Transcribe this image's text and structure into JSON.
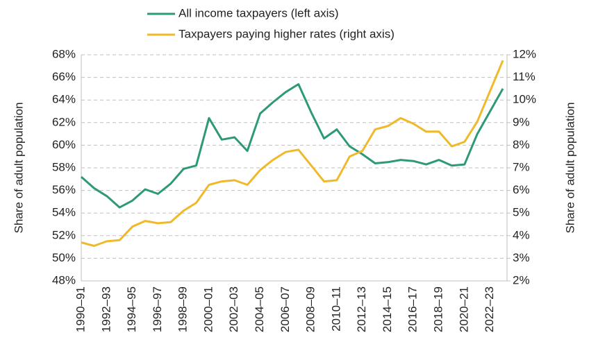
{
  "chart_data": {
    "type": "line",
    "y_label": "Share of adult population",
    "y2_label": "Share of adult population",
    "categories": [
      "1990–91",
      null,
      "1992–93",
      null,
      "1994–95",
      null,
      "1996–97",
      null,
      "1998–99",
      null,
      "2000–01",
      null,
      "2002–03",
      null,
      "2004–05",
      null,
      "2006–07",
      null,
      "2008–09",
      null,
      "2010–11",
      null,
      "2012–13",
      null,
      "2014–15",
      null,
      "2016–17",
      null,
      "2018–19",
      null,
      "2020–21",
      null,
      "2022–23",
      null
    ],
    "series": [
      {
        "name": "All income taxpayers (left axis)",
        "color": "#2e9a74",
        "axis": "y",
        "values": [
          57.2,
          56.2,
          55.5,
          54.5,
          55.1,
          56.1,
          55.7,
          56.6,
          57.9,
          58.2,
          62.4,
          60.5,
          60.7,
          59.5,
          62.8,
          63.8,
          64.7,
          65.4,
          62.9,
          60.6,
          61.4,
          59.9,
          59.2,
          58.4,
          58.5,
          58.7,
          58.6,
          58.3,
          58.7,
          58.2,
          58.3,
          61.0,
          63.0,
          65.0
        ]
      },
      {
        "name": "Taxpayers paying higher rates (right axis)",
        "color": "#f0b929",
        "axis": "y2",
        "values": [
          3.7,
          3.55,
          3.75,
          3.8,
          4.4,
          4.65,
          4.55,
          4.6,
          5.1,
          5.45,
          6.25,
          6.4,
          6.45,
          6.25,
          6.9,
          7.35,
          7.7,
          7.8,
          7.1,
          6.4,
          6.45,
          7.5,
          7.75,
          8.7,
          8.85,
          9.2,
          8.95,
          8.6,
          8.6,
          7.95,
          8.15,
          9.05,
          10.4,
          11.75
        ]
      }
    ],
    "ylim": [
      48,
      68
    ],
    "yticks": [
      {
        "value": 48,
        "label": "48%"
      },
      {
        "value": 50,
        "label": "50%"
      },
      {
        "value": 52,
        "label": "52%"
      },
      {
        "value": 54,
        "label": "54%"
      },
      {
        "value": 56,
        "label": "56%"
      },
      {
        "value": 58,
        "label": "58%"
      },
      {
        "value": 60,
        "label": "60%"
      },
      {
        "value": 62,
        "label": "62%"
      },
      {
        "value": 64,
        "label": "64%"
      },
      {
        "value": 66,
        "label": "66%"
      },
      {
        "value": 68,
        "label": "68%"
      }
    ],
    "y2lim": [
      2,
      12
    ],
    "y2ticks": [
      {
        "value": 2,
        "label": "2%"
      },
      {
        "value": 3,
        "label": "3%"
      },
      {
        "value": 4,
        "label": "4%"
      },
      {
        "value": 5,
        "label": "5%"
      },
      {
        "value": 6,
        "label": "6%"
      },
      {
        "value": 7,
        "label": "7%"
      },
      {
        "value": 8,
        "label": "8%"
      },
      {
        "value": 9,
        "label": "9%"
      },
      {
        "value": 10,
        "label": "10%"
      },
      {
        "value": 11,
        "label": "11%"
      },
      {
        "value": 12,
        "label": "12%"
      }
    ],
    "grid": true,
    "legend": "top"
  }
}
